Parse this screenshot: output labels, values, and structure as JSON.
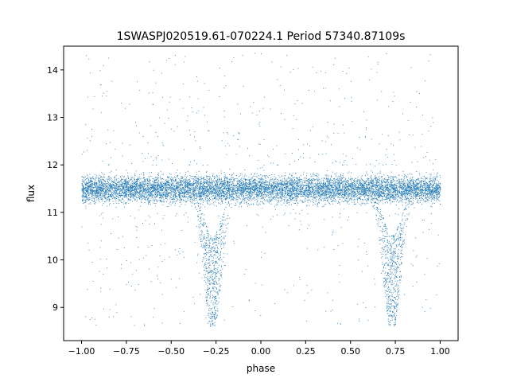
{
  "chart_data": {
    "type": "scatter",
    "title": "1SWASPJ020519.61-070224.1 Period 57340.87109s",
    "xlabel": "phase",
    "ylabel": "flux",
    "xlim": [
      -1.1,
      1.1
    ],
    "ylim": [
      8.3,
      14.5
    ],
    "x_ticks": [
      -1.0,
      -0.75,
      -0.5,
      -0.25,
      0.0,
      0.25,
      0.5,
      0.75,
      1.0
    ],
    "x_tick_labels": [
      "−1.00",
      "−0.75",
      "−0.50",
      "−0.25",
      "0.00",
      "0.25",
      "0.50",
      "0.75",
      "1.00"
    ],
    "y_ticks": [
      9,
      10,
      11,
      12,
      13,
      14
    ],
    "y_tick_labels": [
      "9",
      "10",
      "11",
      "12",
      "13",
      "14"
    ],
    "grid": false,
    "legend": "none",
    "series": [
      {
        "color": "#1f77b4",
        "marker": "point",
        "description_of_pattern": "folded light curve",
        "baseline_flux": 11.5,
        "baseline_scatter": 0.22,
        "eclipse_centers_phase": [
          -0.27,
          0.73
        ],
        "eclipse_min_flux": 8.7,
        "phase_range": [
          -1.0,
          1.0
        ],
        "flux_range": [
          8.6,
          14.4
        ]
      }
    ]
  }
}
